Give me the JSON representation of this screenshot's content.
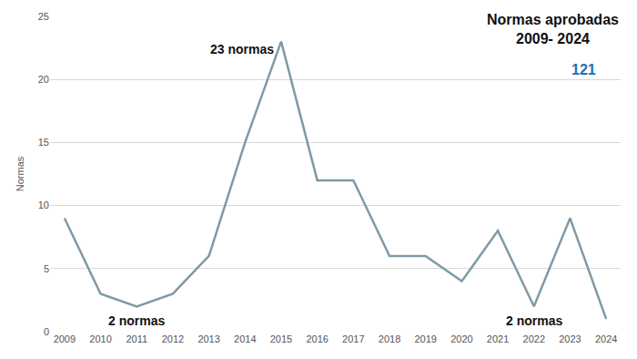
{
  "chart_data": {
    "type": "line",
    "title": "Normas aprobadas 2009- 2024",
    "subtitle": "121",
    "y_label": "Normas",
    "categories": [
      "2009",
      "2010",
      "2011",
      "2012",
      "2013",
      "2014",
      "2015",
      "2016",
      "2017",
      "2018",
      "2019",
      "2020",
      "2021",
      "2022",
      "2023",
      "2024"
    ],
    "values": [
      9,
      3,
      2,
      3,
      6,
      15,
      23,
      12,
      12,
      6,
      6,
      4,
      8,
      2,
      9,
      1
    ],
    "color": "#7f9aa6",
    "ylim": [
      0,
      25
    ],
    "yticks": [
      0,
      5,
      10,
      15,
      20,
      25
    ],
    "grid": true,
    "annotations": [
      {
        "text": "23 normas",
        "x": "2015",
        "y": 23
      },
      {
        "text": "2 normas",
        "x": "2011",
        "y": 2
      },
      {
        "text": "2 normas",
        "x": "2022",
        "y": 2
      }
    ]
  }
}
